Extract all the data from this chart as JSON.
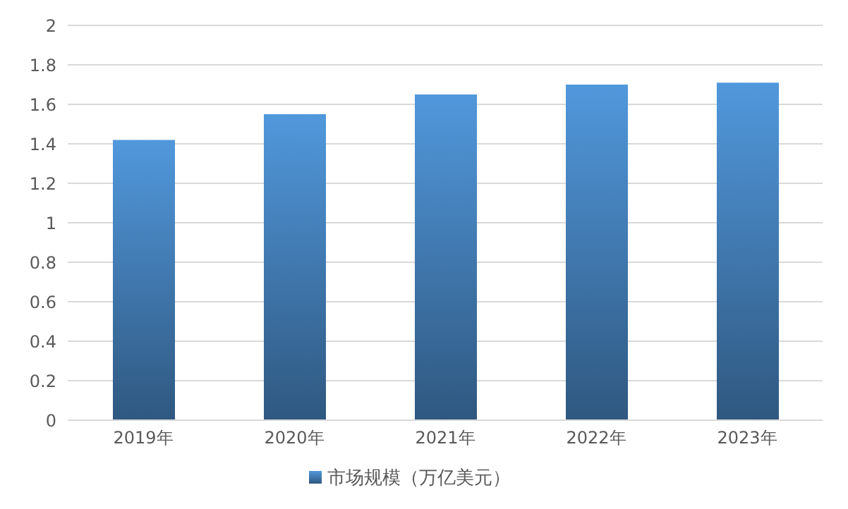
{
  "chart_data": {
    "type": "bar",
    "categories": [
      "2019年",
      "2020年",
      "2021年",
      "2022年",
      "2023年"
    ],
    "series": [
      {
        "name": "市场规模（万亿美元）",
        "color": "#5198dc",
        "values": [
          1.42,
          1.55,
          1.65,
          1.7,
          1.71
        ]
      }
    ],
    "ylim": [
      0,
      2
    ],
    "yticks": [
      0,
      0.2,
      0.4,
      0.6,
      0.8,
      1,
      1.2,
      1.4,
      1.6,
      1.8,
      2
    ],
    "grid": "y",
    "legend": "bottom"
  }
}
